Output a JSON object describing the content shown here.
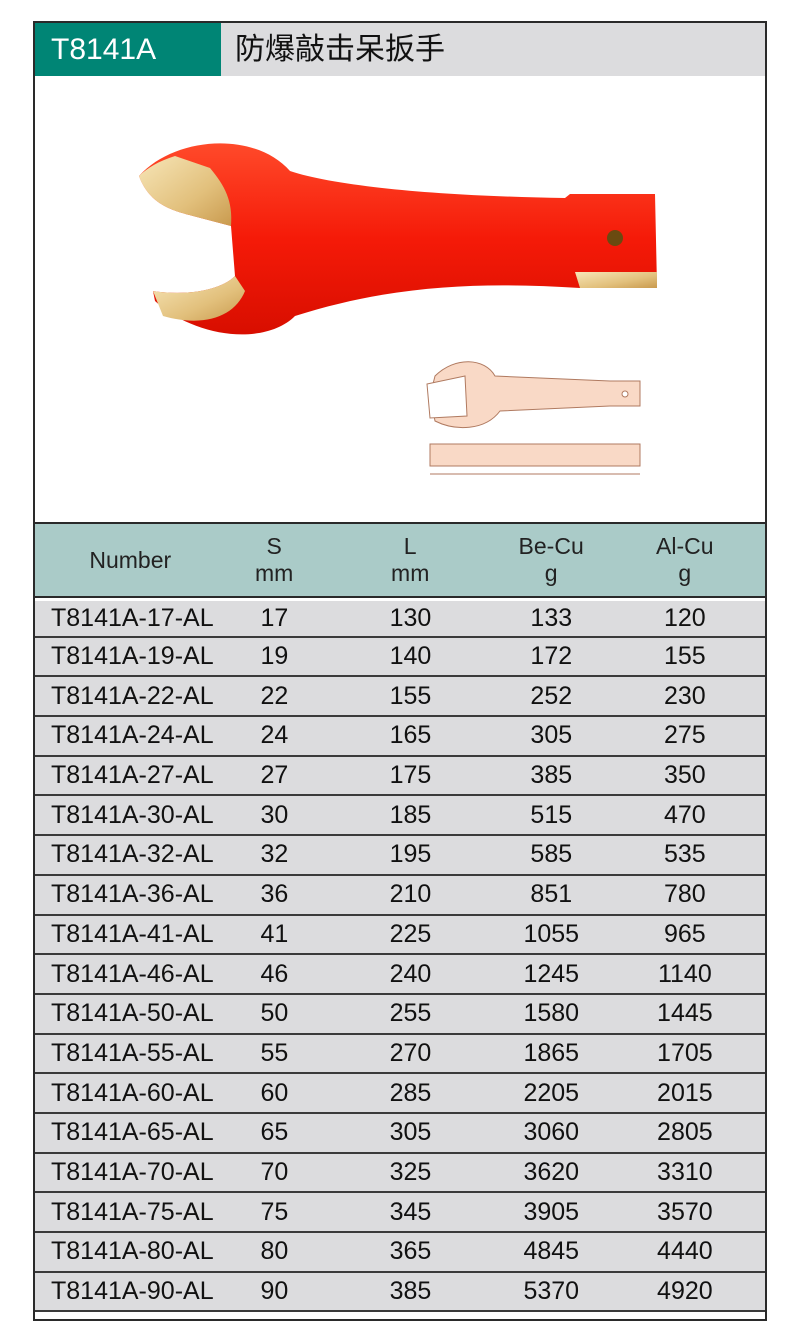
{
  "header": {
    "code": "T8141A",
    "title": "防爆敲击呆扳手"
  },
  "colors": {
    "code_bg": "#008575",
    "title_bg": "#dcdcde",
    "table_header_bg": "#aacbc8",
    "row_bg": "#dcdcde",
    "handle": "#f21c0c",
    "jaw": "#e8c98a"
  },
  "table": {
    "headers": [
      {
        "line1": "Number",
        "line2": ""
      },
      {
        "line1": "S",
        "line2": "mm"
      },
      {
        "line1": "L",
        "line2": "mm"
      },
      {
        "line1": "Be-Cu",
        "line2": "g"
      },
      {
        "line1": "Al-Cu",
        "line2": "g"
      }
    ],
    "rows": [
      [
        "T8141A-17-AL",
        "17",
        "130",
        "133",
        "120"
      ],
      [
        "T8141A-19-AL",
        "19",
        "140",
        "172",
        "155"
      ],
      [
        "T8141A-22-AL",
        "22",
        "155",
        "252",
        "230"
      ],
      [
        "T8141A-24-AL",
        "24",
        "165",
        "305",
        "275"
      ],
      [
        "T8141A-27-AL",
        "27",
        "175",
        "385",
        "350"
      ],
      [
        "T8141A-30-AL",
        "30",
        "185",
        "515",
        "470"
      ],
      [
        "T8141A-32-AL",
        "32",
        "195",
        "585",
        "535"
      ],
      [
        "T8141A-36-AL",
        "36",
        "210",
        "851",
        "780"
      ],
      [
        "T8141A-41-AL",
        "41",
        "225",
        "1055",
        "965"
      ],
      [
        "T8141A-46-AL",
        "46",
        "240",
        "1245",
        "1140"
      ],
      [
        "T8141A-50-AL",
        "50",
        "255",
        "1580",
        "1445"
      ],
      [
        "T8141A-55-AL",
        "55",
        "270",
        "1865",
        "1705"
      ],
      [
        "T8141A-60-AL",
        "60",
        "285",
        "2205",
        "2015"
      ],
      [
        "T8141A-65-AL",
        "65",
        "305",
        "3060",
        "2805"
      ],
      [
        "T8141A-70-AL",
        "70",
        "325",
        "3620",
        "3310"
      ],
      [
        "T8141A-75-AL",
        "75",
        "345",
        "3905",
        "3570"
      ],
      [
        "T8141A-80-AL",
        "80",
        "365",
        "4845",
        "4440"
      ],
      [
        "T8141A-90-AL",
        "90",
        "385",
        "5370",
        "4920"
      ]
    ]
  }
}
